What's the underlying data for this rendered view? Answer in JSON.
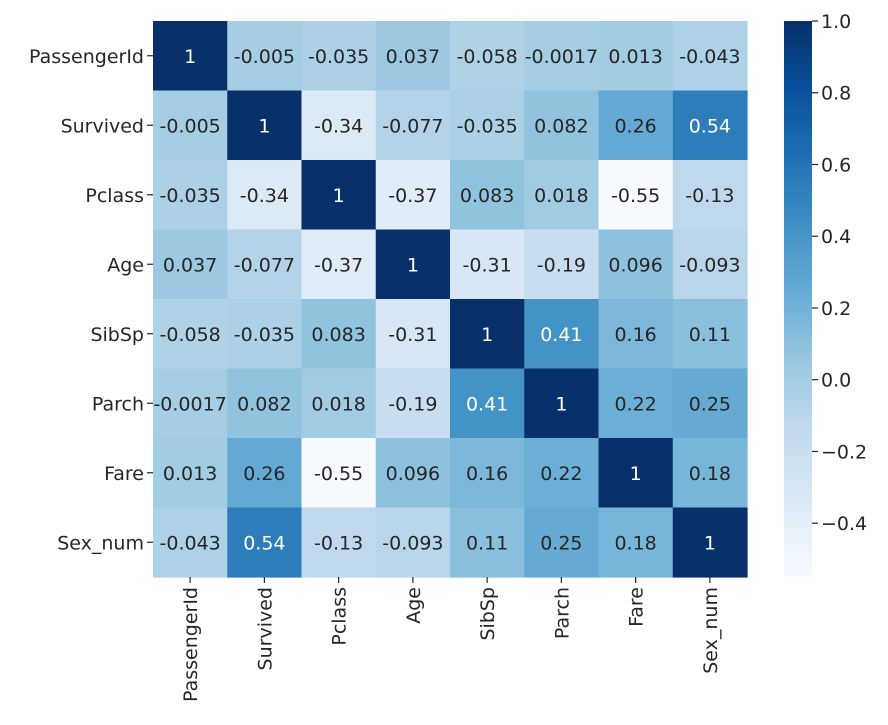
{
  "chart_data": {
    "type": "heatmap",
    "title": "",
    "xlabel": "",
    "ylabel": "",
    "labels": [
      "PassengerId",
      "Survived",
      "Pclass",
      "Age",
      "SibSp",
      "Parch",
      "Fare",
      "Sex_num"
    ],
    "matrix": [
      [
        1,
        -0.005,
        -0.035,
        0.037,
        -0.058,
        -0.0017,
        0.013,
        -0.043
      ],
      [
        -0.005,
        1,
        -0.34,
        -0.077,
        -0.035,
        0.082,
        0.26,
        0.54
      ],
      [
        -0.035,
        -0.34,
        1,
        -0.37,
        0.083,
        0.018,
        -0.55,
        -0.13
      ],
      [
        0.037,
        -0.077,
        -0.37,
        1,
        -0.31,
        -0.19,
        0.096,
        -0.093
      ],
      [
        -0.058,
        -0.035,
        0.083,
        -0.31,
        1,
        0.41,
        0.16,
        0.11
      ],
      [
        -0.0017,
        0.082,
        0.018,
        -0.19,
        0.41,
        1,
        0.22,
        0.25
      ],
      [
        0.013,
        0.26,
        -0.55,
        0.096,
        0.16,
        0.22,
        1,
        0.18
      ],
      [
        -0.043,
        0.54,
        -0.13,
        -0.093,
        0.11,
        0.25,
        0.18,
        1
      ]
    ],
    "annotations": [
      [
        "1",
        "-0.005",
        "-0.035",
        "0.037",
        "-0.058",
        "-0.0017",
        "0.013",
        "-0.043"
      ],
      [
        "-0.005",
        "1",
        "-0.34",
        "-0.077",
        "-0.035",
        "0.082",
        "0.26",
        "0.54"
      ],
      [
        "-0.035",
        "-0.34",
        "1",
        "-0.37",
        "0.083",
        "0.018",
        "-0.55",
        "-0.13"
      ],
      [
        "0.037",
        "-0.077",
        "-0.37",
        "1",
        "-0.31",
        "-0.19",
        "0.096",
        "-0.093"
      ],
      [
        "-0.058",
        "-0.035",
        "0.083",
        "-0.31",
        "1",
        "0.41",
        "0.16",
        "0.11"
      ],
      [
        "-0.0017",
        "0.082",
        "0.018",
        "-0.19",
        "0.41",
        "1",
        "0.22",
        "0.25"
      ],
      [
        "0.013",
        "0.26",
        "-0.55",
        "0.096",
        "0.16",
        "0.22",
        "1",
        "0.18"
      ],
      [
        "-0.043",
        "0.54",
        "-0.13",
        "-0.093",
        "0.11",
        "0.25",
        "0.18",
        "1"
      ]
    ],
    "colormap": "Blues",
    "vmin": -0.55,
    "vmax": 1.0,
    "colorbar": {
      "ticks": [
        1.0,
        0.8,
        0.6,
        0.4,
        0.2,
        0.0,
        -0.2,
        -0.4
      ],
      "tick_labels": [
        "1.0",
        "0.8",
        "0.6",
        "0.4",
        "0.2",
        "0.0",
        "−0.2",
        "−0.4"
      ]
    }
  }
}
